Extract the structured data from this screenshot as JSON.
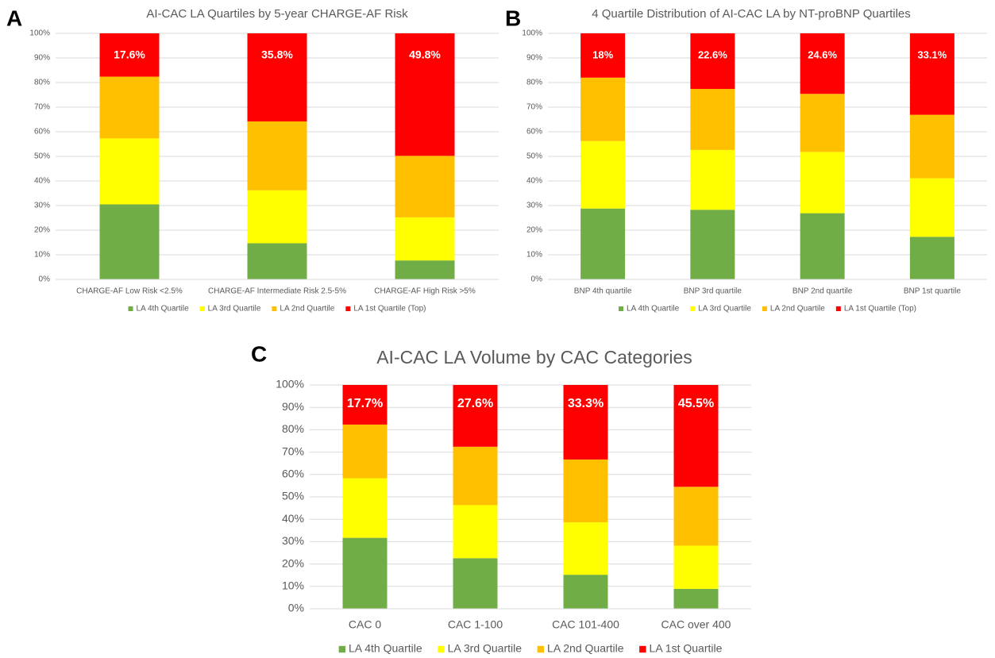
{
  "chart_data": [
    {
      "type": "bar",
      "stacked": true,
      "panel": "A",
      "title": "AI-CAC LA Quartiles by 5-year CHARGE-AF Risk",
      "categories": [
        "CHARGE-AF Low Risk <2.5%",
        "CHARGE-AF Intermediate Risk 2.5-5%",
        "CHARGE-AF High Risk >5%"
      ],
      "series": [
        {
          "name": "LA 4th Quartile",
          "color": "#70ad47",
          "values": [
            30.5,
            14.7,
            7.7
          ]
        },
        {
          "name": "LA 3rd Quartile",
          "color": "#ffff00",
          "values": [
            26.8,
            21.5,
            17.5
          ]
        },
        {
          "name": "LA 2nd Quartile",
          "color": "#ffc000",
          "values": [
            25.1,
            28.0,
            25.0
          ]
        },
        {
          "name": "LA 1st Quartile (Top)",
          "color": "#ff0000",
          "values": [
            17.6,
            35.8,
            49.8
          ],
          "value_labels": [
            "17.6%",
            "35.8%",
            "49.8%"
          ]
        }
      ],
      "ylim": [
        0,
        100
      ],
      "yticks": [
        {
          "value": 0,
          "label": "0%"
        },
        {
          "value": 10,
          "label": "10%"
        },
        {
          "value": 20,
          "label": "20%"
        },
        {
          "value": 30,
          "label": "30%"
        },
        {
          "value": 40,
          "label": "40%"
        },
        {
          "value": 50,
          "label": "50%"
        },
        {
          "value": 60,
          "label": "60%"
        },
        {
          "value": 70,
          "label": "70%"
        },
        {
          "value": 80,
          "label": "80%"
        },
        {
          "value": 90,
          "label": "90%"
        },
        {
          "value": 100,
          "label": "100%"
        }
      ],
      "grid": true,
      "legend": "bottom"
    },
    {
      "type": "bar",
      "stacked": true,
      "panel": "B",
      "title": "4 Quartile Distribution of AI-CAC LA by NT-proBNP Quartiles",
      "categories": [
        "BNP 4th quartile",
        "BNP 3rd quartile",
        "BNP 2nd quartile",
        "BNP 1st quartile"
      ],
      "series": [
        {
          "name": "LA 4th Quartile",
          "color": "#70ad47",
          "values": [
            28.8,
            28.3,
            26.9,
            17.3
          ]
        },
        {
          "name": "LA 3rd Quartile",
          "color": "#ffff00",
          "values": [
            27.4,
            24.3,
            24.9,
            23.8
          ]
        },
        {
          "name": "LA 2nd Quartile",
          "color": "#ffc000",
          "values": [
            25.8,
            24.8,
            23.6,
            25.8
          ]
        },
        {
          "name": "LA 1st Quartile (Top)",
          "color": "#ff0000",
          "values": [
            18,
            22.6,
            24.6,
            33.1
          ],
          "value_labels": [
            "18%",
            "22.6%",
            "24.6%",
            "33.1%"
          ]
        }
      ],
      "ylim": [
        0,
        100
      ],
      "yticks": [
        {
          "value": 0,
          "label": "0%"
        },
        {
          "value": 10,
          "label": "10%"
        },
        {
          "value": 20,
          "label": "20%"
        },
        {
          "value": 30,
          "label": "30%"
        },
        {
          "value": 40,
          "label": "40%"
        },
        {
          "value": 50,
          "label": "50%"
        },
        {
          "value": 60,
          "label": "60%"
        },
        {
          "value": 70,
          "label": "70%"
        },
        {
          "value": 80,
          "label": "80%"
        },
        {
          "value": 90,
          "label": "90%"
        },
        {
          "value": 100,
          "label": "100%"
        }
      ],
      "grid": true,
      "legend": "bottom"
    },
    {
      "type": "bar",
      "stacked": true,
      "panel": "C",
      "title": "AI-CAC LA Volume by CAC Categories",
      "categories": [
        "CAC 0",
        "CAC 1-100",
        "CAC 101-400",
        "CAC over 400"
      ],
      "series": [
        {
          "name": "LA 4th Quartile",
          "color": "#70ad47",
          "values": [
            31.7,
            22.6,
            15.2,
            8.9
          ]
        },
        {
          "name": "LA 3rd Quartile",
          "color": "#ffff00",
          "values": [
            26.6,
            23.7,
            23.4,
            19.3
          ]
        },
        {
          "name": "LA 2nd Quartile",
          "color": "#ffc000",
          "values": [
            24.0,
            26.1,
            28.1,
            26.3
          ]
        },
        {
          "name": "LA 1st Quartile",
          "color": "#ff0000",
          "values": [
            17.7,
            27.6,
            33.3,
            45.5
          ],
          "value_labels": [
            "17.7%",
            "27.6%",
            "33.3%",
            "45.5%"
          ]
        }
      ],
      "ylim": [
        0,
        100
      ],
      "yticks": [
        {
          "value": 0,
          "label": "0%"
        },
        {
          "value": 10,
          "label": "10%"
        },
        {
          "value": 20,
          "label": "20%"
        },
        {
          "value": 30,
          "label": "30%"
        },
        {
          "value": 40,
          "label": "40%"
        },
        {
          "value": 50,
          "label": "50%"
        },
        {
          "value": 60,
          "label": "60%"
        },
        {
          "value": 70,
          "label": "70%"
        },
        {
          "value": 80,
          "label": "80%"
        },
        {
          "value": 90,
          "label": "90%"
        },
        {
          "value": 100,
          "label": "100%"
        }
      ],
      "grid": true,
      "legend": "bottom"
    }
  ]
}
